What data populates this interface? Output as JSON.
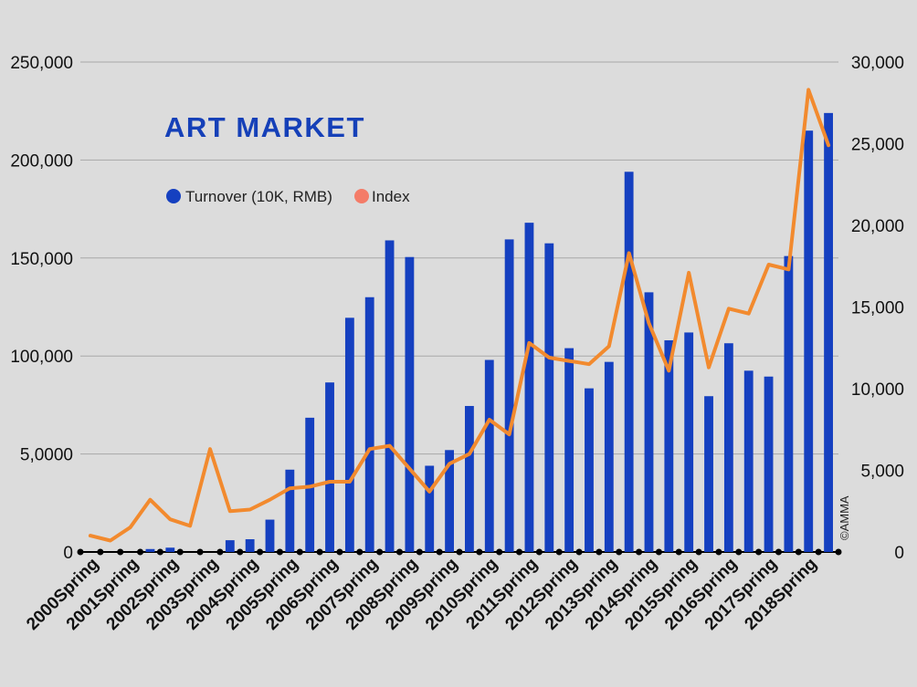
{
  "chart_data": {
    "type": "bar",
    "title": "ART MARKET",
    "credit": "©AMMA",
    "legend": {
      "position": "top-left",
      "entries": [
        "Turnover (10K, RMB)",
        "Index"
      ]
    },
    "colors": {
      "bar": "#1540c0",
      "line": "#f28a2e",
      "line_legend": "#f47c68",
      "marker": "#000000",
      "grid": "#a8a8a8"
    },
    "grid": true,
    "y_left": {
      "range": [
        0,
        250000
      ],
      "ticks": [
        0,
        50000,
        100000,
        150000,
        200000,
        250000
      ],
      "tick_labels": [
        "0",
        "5,0000",
        "100,000",
        "150,000",
        "200,000",
        "250,000"
      ]
    },
    "y_right": {
      "range": [
        0,
        30000
      ],
      "ticks": [
        0,
        5000,
        10000,
        15000,
        20000,
        25000,
        30000
      ],
      "tick_labels": [
        "0",
        "5,000",
        "10,000",
        "15,000",
        "20,000",
        "25,000",
        "30,000"
      ]
    },
    "x_tick_labels": [
      "2000Spring",
      "2001Spring",
      "2002Spring",
      "2003Spring",
      "2004Spring",
      "2005Spring",
      "2006Spring",
      "2007Spring",
      "2008Spring",
      "2009Spring",
      "2010Spring",
      "2011Spring",
      "2012Spring",
      "2013Spring",
      "2014Spring",
      "2015Spring",
      "2016Spring",
      "2017Spring",
      "2018Spring"
    ],
    "x_tick_every": 2,
    "series": [
      {
        "name": "Turnover (10K, RMB)",
        "type": "bar",
        "axis": "left",
        "values": [
          0,
          0,
          0,
          1500,
          2200,
          0,
          0,
          6000,
          6500,
          16500,
          42000,
          68500,
          86500,
          119500,
          130000,
          159000,
          150500,
          44000,
          52000,
          74500,
          98000,
          159500,
          168000,
          157500,
          104000,
          83500,
          97000,
          194000,
          132500,
          108000,
          112000,
          79500,
          106500,
          92500,
          89500,
          151000,
          215000,
          224000
        ]
      },
      {
        "name": "Index",
        "type": "line",
        "axis": "right",
        "values": [
          1000,
          700,
          1500,
          3200,
          2000,
          1600,
          6300,
          2500,
          2600,
          3200,
          3900,
          4000,
          4300,
          4300,
          6300,
          6500,
          5100,
          3700,
          5400,
          6000,
          8100,
          7200,
          12800,
          11900,
          11700,
          11500,
          12600,
          18300,
          14000,
          11100,
          17100,
          11300,
          14900,
          14600,
          17600,
          17300,
          28300,
          24900
        ]
      }
    ]
  }
}
